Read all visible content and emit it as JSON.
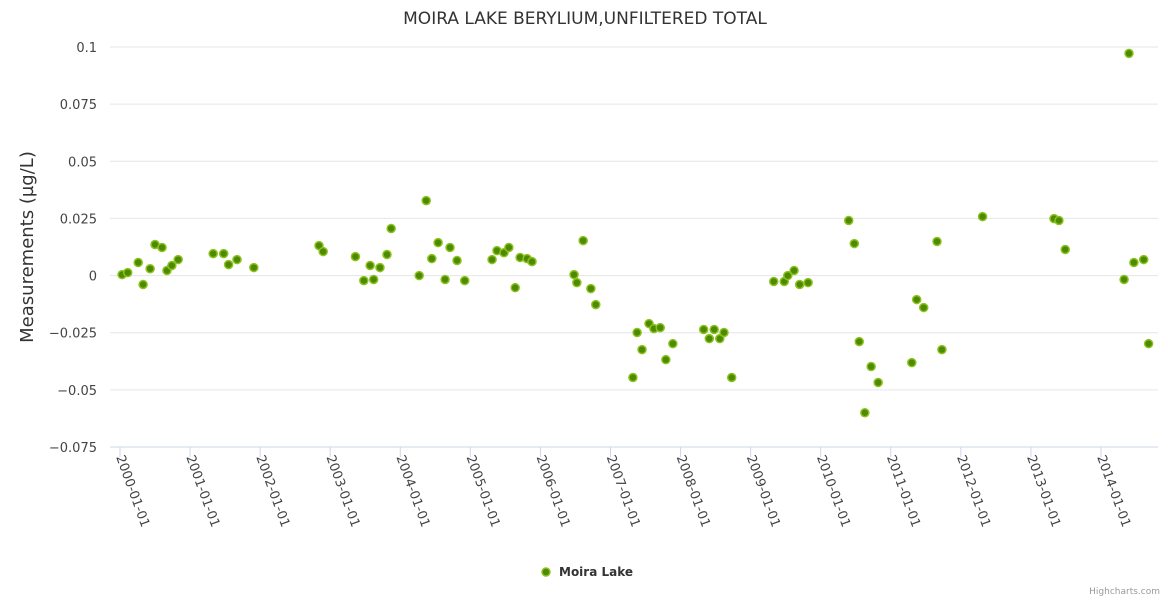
{
  "chart_data": {
    "type": "scatter",
    "title": "MOIRA LAKE BERYLIUM,UNFILTERED TOTAL",
    "xlabel": "",
    "ylabel": "Measurements (µg/L)",
    "ylim": [
      -0.075,
      0.1
    ],
    "y_ticks": [
      0.1,
      0.075,
      0.05,
      0.025,
      0,
      -0.025,
      -0.05,
      -0.075
    ],
    "y_tick_labels": [
      "0.1",
      "0.075",
      "0.05",
      "0.025",
      "0",
      "−0.025",
      "−0.05",
      "−0.075"
    ],
    "x_tick_labels": [
      "2000-01-01",
      "2001-01-01",
      "2002-01-01",
      "2003-01-01",
      "2004-01-01",
      "2005-01-01",
      "2006-01-01",
      "2007-01-01",
      "2008-01-01",
      "2009-01-01",
      "2010-01-01",
      "2011-01-01",
      "2012-01-01",
      "2013-01-01",
      "2014-01-01"
    ],
    "x_unit": "decimal year",
    "grid": true,
    "legend_position": "bottom-center",
    "series": [
      {
        "name": "Moira Lake",
        "color": "#6aa01a",
        "points": [
          [
            2000.03,
            0.0004
          ],
          [
            2000.11,
            0.0013
          ],
          [
            2000.26,
            0.0057
          ],
          [
            2000.33,
            -0.0039
          ],
          [
            2000.43,
            0.003
          ],
          [
            2000.5,
            0.0136
          ],
          [
            2000.6,
            0.0123
          ],
          [
            2000.67,
            0.0022
          ],
          [
            2000.74,
            0.0044
          ],
          [
            2000.83,
            0.007
          ],
          [
            2001.33,
            0.0096
          ],
          [
            2001.48,
            0.0096
          ],
          [
            2001.55,
            0.0048
          ],
          [
            2001.67,
            0.007
          ],
          [
            2001.91,
            0.0035
          ],
          [
            2002.84,
            0.0131
          ],
          [
            2002.9,
            0.0105
          ],
          [
            2003.36,
            0.0083
          ],
          [
            2003.48,
            -0.0022
          ],
          [
            2003.57,
            0.0044
          ],
          [
            2003.62,
            -0.0017
          ],
          [
            2003.71,
            0.0035
          ],
          [
            2003.81,
            0.0092
          ],
          [
            2003.87,
            0.0206
          ],
          [
            2004.27,
            0.0
          ],
          [
            2004.37,
            0.0328
          ],
          [
            2004.45,
            0.0074
          ],
          [
            2004.54,
            0.0144
          ],
          [
            2004.64,
            -0.0017
          ],
          [
            2004.71,
            0.0123
          ],
          [
            2004.81,
            0.0066
          ],
          [
            2004.92,
            -0.0022
          ],
          [
            2005.31,
            0.007
          ],
          [
            2005.38,
            0.0109
          ],
          [
            2005.48,
            0.01
          ],
          [
            2005.55,
            0.0123
          ],
          [
            2005.64,
            -0.0053
          ],
          [
            2005.71,
            0.0079
          ],
          [
            2005.81,
            0.0074
          ],
          [
            2005.88,
            0.0061
          ],
          [
            2006.48,
            0.0004
          ],
          [
            2006.52,
            -0.0031
          ],
          [
            2006.61,
            0.0153
          ],
          [
            2006.72,
            -0.0057
          ],
          [
            2006.79,
            -0.0127
          ],
          [
            2007.32,
            -0.0446
          ],
          [
            2007.38,
            -0.0249
          ],
          [
            2007.45,
            -0.0324
          ],
          [
            2007.55,
            -0.021
          ],
          [
            2007.62,
            -0.0232
          ],
          [
            2007.71,
            -0.0228
          ],
          [
            2007.79,
            -0.0368
          ],
          [
            2007.89,
            -0.0298
          ],
          [
            2008.33,
            -0.0236
          ],
          [
            2008.41,
            -0.0276
          ],
          [
            2008.48,
            -0.0236
          ],
          [
            2008.56,
            -0.0276
          ],
          [
            2008.62,
            -0.0249
          ],
          [
            2008.73,
            -0.0446
          ],
          [
            2009.33,
            -0.0026
          ],
          [
            2009.48,
            -0.0026
          ],
          [
            2009.53,
            0.0
          ],
          [
            2009.62,
            0.0022
          ],
          [
            2009.7,
            -0.0039
          ],
          [
            2009.82,
            -0.0031
          ],
          [
            2010.4,
            0.0241
          ],
          [
            2010.48,
            0.014
          ],
          [
            2010.55,
            -0.0289
          ],
          [
            2010.63,
            -0.06
          ],
          [
            2010.72,
            -0.0398
          ],
          [
            2010.82,
            -0.0468
          ],
          [
            2011.3,
            -0.0381
          ],
          [
            2011.37,
            -0.0105
          ],
          [
            2011.47,
            -0.014
          ],
          [
            2011.66,
            0.0149
          ],
          [
            2011.73,
            -0.0324
          ],
          [
            2012.31,
            0.0258
          ],
          [
            2013.33,
            0.0249
          ],
          [
            2013.4,
            0.0241
          ],
          [
            2013.49,
            0.0114
          ],
          [
            2014.33,
            -0.0017
          ],
          [
            2014.4,
            0.0972
          ],
          [
            2014.47,
            0.0057
          ],
          [
            2014.61,
            0.007
          ],
          [
            2014.68,
            -0.0298
          ]
        ]
      }
    ]
  },
  "credits": "Highcharts.com"
}
